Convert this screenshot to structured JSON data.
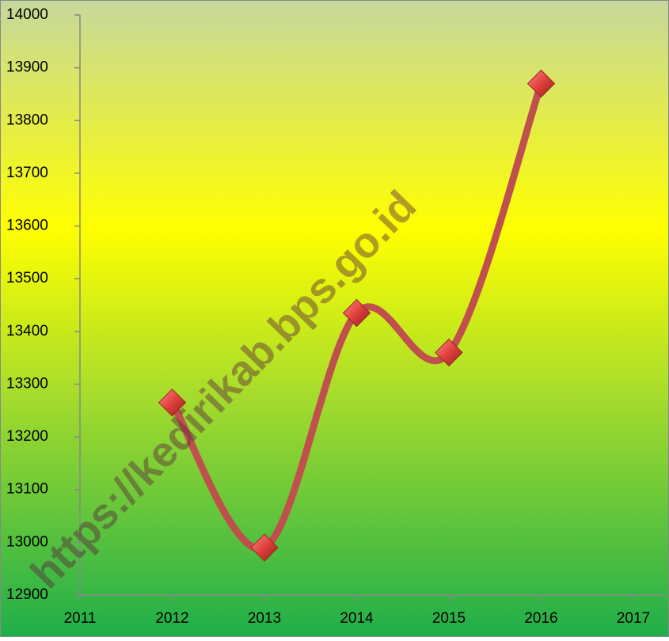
{
  "chart_data": {
    "type": "line",
    "x": [
      2012,
      2013,
      2014,
      2015,
      2016
    ],
    "series": [
      {
        "color": "#c0504d",
        "values": [
          13265,
          12990,
          13435,
          13360,
          13870
        ]
      }
    ],
    "xlim": [
      2011,
      2017
    ],
    "xticks": [
      2011,
      2012,
      2013,
      2014,
      2015,
      2016,
      2017
    ],
    "ylim": [
      12900,
      14000
    ],
    "yticks": [
      12900,
      13000,
      13100,
      13200,
      13300,
      13400,
      13500,
      13600,
      13700,
      13800,
      13900,
      14000
    ],
    "annotation": "https://kedirikab.bps.go.id"
  }
}
